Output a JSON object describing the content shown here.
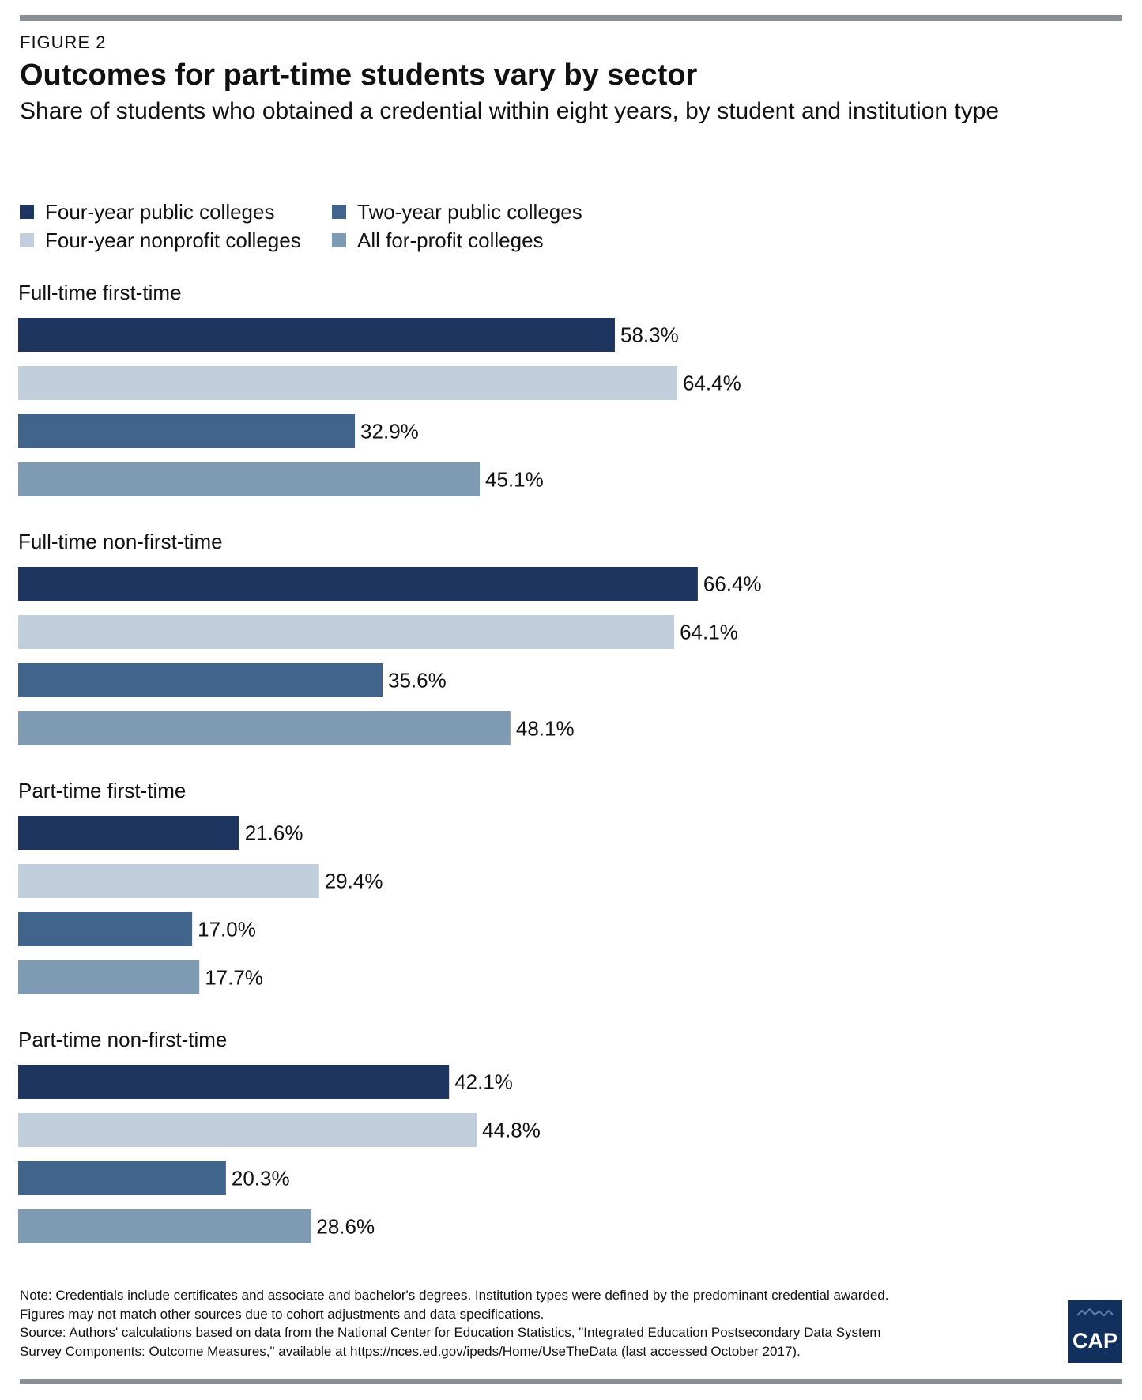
{
  "figure_label": "FIGURE 2",
  "title": "Outcomes for part-time students vary by sector",
  "subtitle": "Share of students who obtained a credential within eight years, by student and institution type",
  "colors": {
    "four_year_public": "#1e355f",
    "four_year_nonprofit": "#c1cedb",
    "two_year_public": "#40648b",
    "for_profit": "#7f9bb4",
    "rule": "#8a8f96",
    "logo": "#12305e"
  },
  "legend": [
    {
      "label": "Four-year public colleges",
      "color": "#1e355f"
    },
    {
      "label": "Two-year public colleges",
      "color": "#40648b"
    },
    {
      "label": "Four-year nonprofit colleges",
      "color": "#c1cedb"
    },
    {
      "label": "All for-profit colleges",
      "color": "#7f9bb4"
    }
  ],
  "chart_data": {
    "type": "bar",
    "orientation": "horizontal",
    "value_format": "percent, one decimal",
    "categories": [
      "Full-time first-time",
      "Full-time non-first-time",
      "Part-time first-time",
      "Part-time non-first-time"
    ],
    "series": [
      {
        "name": "Four-year public colleges",
        "color": "#1e355f",
        "values": [
          58.3,
          66.4,
          21.6,
          42.1
        ]
      },
      {
        "name": "Four-year nonprofit colleges",
        "color": "#c1cedb",
        "values": [
          64.4,
          64.1,
          29.4,
          44.8
        ]
      },
      {
        "name": "Two-year public colleges",
        "color": "#40648b",
        "values": [
          32.9,
          35.6,
          17.0,
          20.3
        ]
      },
      {
        "name": "All for-profit colleges",
        "color": "#7f9bb4",
        "values": [
          45.1,
          48.1,
          17.7,
          28.6
        ]
      }
    ],
    "xlim": [
      0,
      100
    ],
    "grid": false,
    "axes_visible": false,
    "legend_position": "top-left"
  },
  "notes": [
    "Note: Credentials include certificates and associate and bachelor's degrees. Institution types were defined by the predominant credential awarded.",
    "Figures may not match other sources due to cohort adjustments and data specifications.",
    "Source: Authors' calculations based on data from the National Center for Education Statistics, \"Integrated Education Postsecondary Data System",
    "Survey Components: Outcome Measures,\" available at https://nces.ed.gov/ipeds/Home/UseTheData (last accessed October 2017)."
  ],
  "logo_text": "CAP"
}
